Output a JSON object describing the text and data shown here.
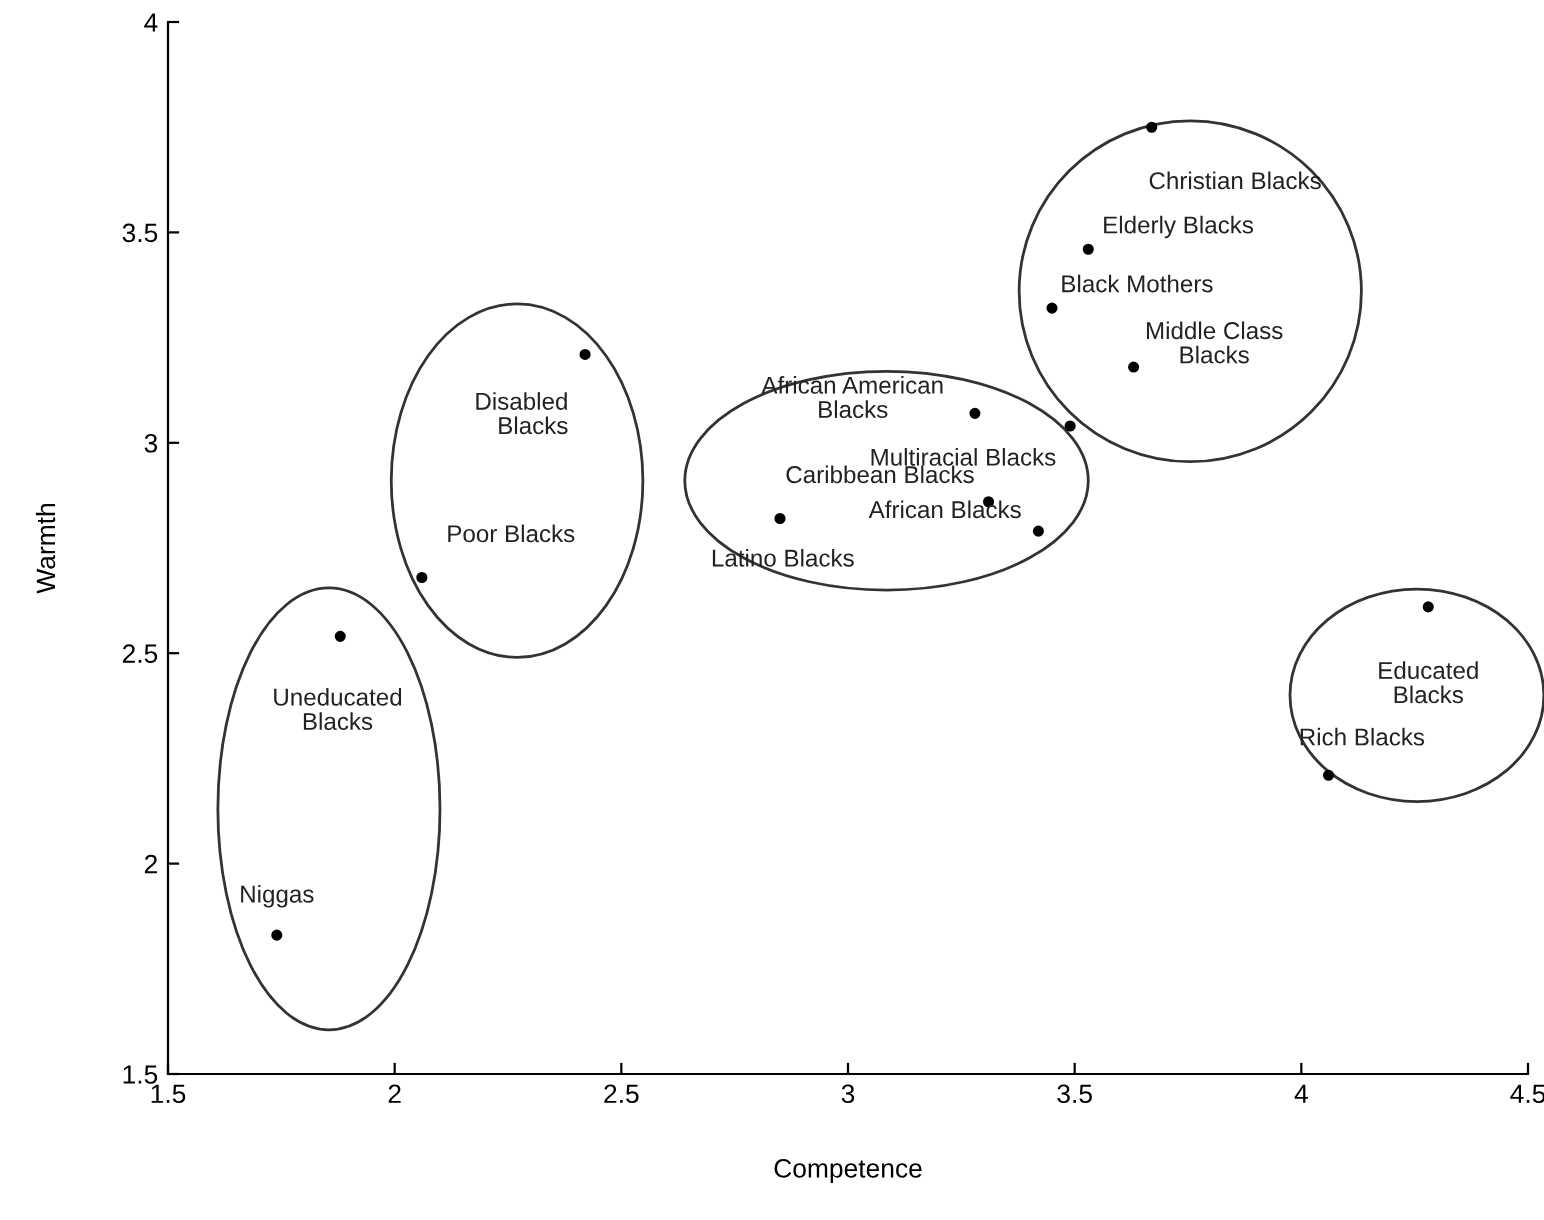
{
  "chart_data": {
    "type": "scatter",
    "xlabel": "Competence",
    "ylabel": "Warmth",
    "xlim": [
      1.5,
      4.5
    ],
    "xticks": [
      1.5,
      2,
      2.5,
      3,
      3.5,
      4,
      4.5
    ],
    "ylim": [
      1.5,
      4
    ],
    "yticks": [
      1.5,
      2,
      2.5,
      3,
      3.5,
      4
    ],
    "grid": false,
    "marker": "circle",
    "series": [
      {
        "color": "#000000",
        "x": [
          3.67,
          3.53,
          3.45,
          3.63,
          3.28,
          3.49,
          3.31,
          3.42,
          2.85,
          2.42,
          2.06,
          1.88,
          1.74,
          4.28,
          4.06
        ],
        "values": [
          3.75,
          3.46,
          3.32,
          3.18,
          3.07,
          3.04,
          2.86,
          2.79,
          2.82,
          3.21,
          2.68,
          2.54,
          1.83,
          2.61,
          2.21
        ]
      }
    ],
    "annotations": [
      {
        "text": "Christian Blacks",
        "x": 3.67,
        "y": 3.75
      },
      {
        "text": "Elderly Blacks",
        "x": 3.53,
        "y": 3.46
      },
      {
        "text": "Black Mothers",
        "x": 3.45,
        "y": 3.32
      },
      {
        "text": "Middle Class\nBlacks",
        "x": 3.63,
        "y": 3.18
      },
      {
        "text": "African American\nBlacks",
        "x": 3.28,
        "y": 3.07
      },
      {
        "text": "Multiracial Blacks",
        "x": 3.49,
        "y": 3.04
      },
      {
        "text": "Caribbean Blacks",
        "x": 3.31,
        "y": 2.86
      },
      {
        "text": "African Blacks",
        "x": 3.42,
        "y": 2.79
      },
      {
        "text": "Latino Blacks",
        "x": 2.85,
        "y": 2.82
      },
      {
        "text": "Disabled\nBlacks",
        "x": 2.42,
        "y": 3.21
      },
      {
        "text": "Poor Blacks",
        "x": 2.06,
        "y": 2.68
      },
      {
        "text": "Uneducated\nBlacks",
        "x": 1.88,
        "y": 2.54
      },
      {
        "text": "Niggas",
        "x": 1.74,
        "y": 1.83
      },
      {
        "text": "Educated\nBlacks",
        "x": 4.28,
        "y": 2.61
      },
      {
        "text": "Rich Blacks",
        "x": 4.06,
        "y": 2.21
      }
    ]
  }
}
